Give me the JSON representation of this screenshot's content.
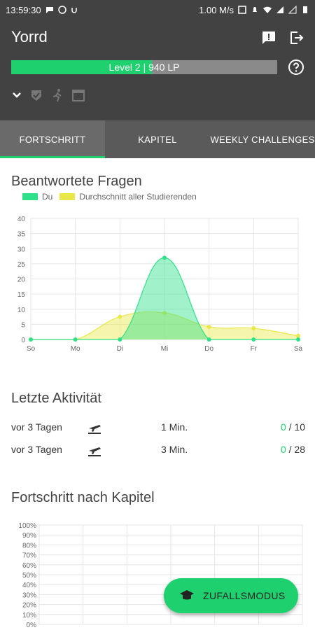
{
  "status_bar": {
    "time": "13:59:30",
    "speed": "1.00 M/s"
  },
  "app": {
    "title": "Yorrd"
  },
  "level": {
    "text": "Level 2 | 940 LP",
    "progress": 0.53
  },
  "tabs": [
    {
      "label": "FORTSCHRITT",
      "active": true
    },
    {
      "label": "KAPITEL",
      "active": false
    },
    {
      "label": "WEEKLY CHALLENGES",
      "active": false
    }
  ],
  "answered": {
    "title": "Beantwortete Fragen",
    "legend": [
      {
        "label": "Du",
        "color": "#2fe08a"
      },
      {
        "label": "Durchschnitt aller Studierenden",
        "color": "#e8e84a"
      }
    ]
  },
  "chart_data": [
    {
      "type": "area",
      "title": "Beantwortete Fragen",
      "categories": [
        "So",
        "Mo",
        "Di",
        "Mi",
        "Do",
        "Fr",
        "Sa"
      ],
      "ylim": [
        0,
        40
      ],
      "yticks": [
        "0",
        "5",
        "10",
        "15",
        "20",
        "25",
        "30",
        "35",
        "40"
      ],
      "grid": true,
      "legend": "top-left",
      "series": [
        {
          "name": "Du",
          "values": [
            0,
            0,
            0,
            27,
            0,
            0,
            0
          ],
          "color": "#2fe08a"
        },
        {
          "name": "Durchschnitt aller Studierenden",
          "values": [
            0,
            0,
            7.5,
            8.8,
            4.2,
            3.7,
            1.2
          ],
          "color": "#e8e84a"
        }
      ]
    },
    {
      "type": "bar",
      "title": "Fortschritt nach Kapitel",
      "yticks": [
        "0%",
        "10%",
        "20%",
        "30%",
        "40%",
        "50%",
        "60%",
        "70%",
        "80%",
        "90%",
        "100%"
      ],
      "ylim": [
        0,
        100
      ],
      "grid": true,
      "categories": [],
      "values": []
    }
  ],
  "activity": {
    "title": "Letzte Aktivität",
    "rows": [
      {
        "when": "vor 3 Tagen",
        "duration": "1 Min.",
        "correct": "0",
        "total": " / 10"
      },
      {
        "when": "vor 3 Tagen",
        "duration": "3 Min.",
        "correct": "0",
        "total": " / 28"
      }
    ]
  },
  "progress_section": {
    "title": "Fortschritt nach Kapitel"
  },
  "fab": {
    "label": "ZUFALLSMODUS"
  }
}
